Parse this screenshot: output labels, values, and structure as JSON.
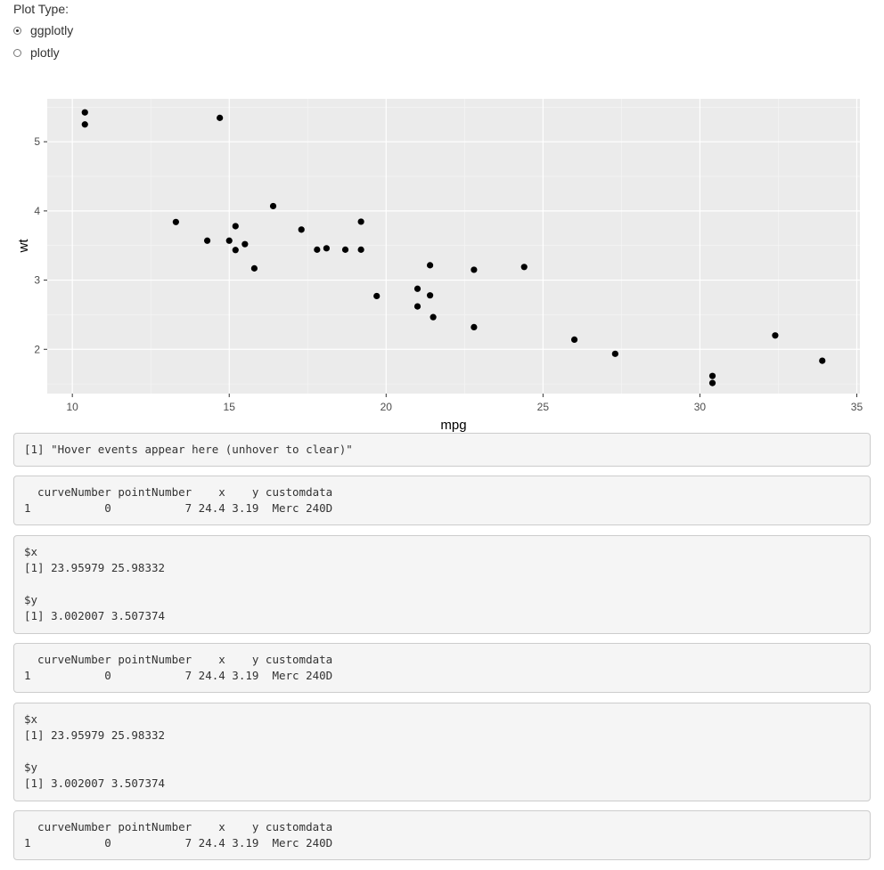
{
  "input": {
    "label": "Plot Type:",
    "options": [
      {
        "label": "ggplotly",
        "checked": true
      },
      {
        "label": "plotly",
        "checked": false
      }
    ]
  },
  "chart_data": {
    "type": "scatter",
    "title": "",
    "xlabel": "mpg",
    "ylabel": "wt",
    "xlim": [
      9.2,
      35.1
    ],
    "ylim": [
      1.36,
      5.62
    ],
    "xticks": [
      10,
      15,
      20,
      25,
      30,
      35
    ],
    "yticks": [
      2,
      3,
      4,
      5
    ],
    "xtick_labels": [
      "10",
      "15",
      "20",
      "25",
      "30",
      "35"
    ],
    "ytick_labels": [
      "2",
      "3",
      "4",
      "5"
    ],
    "grid": true,
    "background": "#ebebeb",
    "point_color": "#000000",
    "points": [
      {
        "x": 21.0,
        "y": 2.62
      },
      {
        "x": 21.0,
        "y": 2.875
      },
      {
        "x": 22.8,
        "y": 2.32
      },
      {
        "x": 21.4,
        "y": 3.215
      },
      {
        "x": 18.7,
        "y": 3.44
      },
      {
        "x": 18.1,
        "y": 3.46
      },
      {
        "x": 14.3,
        "y": 3.57
      },
      {
        "x": 24.4,
        "y": 3.19
      },
      {
        "x": 22.8,
        "y": 3.15
      },
      {
        "x": 19.2,
        "y": 3.44
      },
      {
        "x": 17.8,
        "y": 3.44
      },
      {
        "x": 16.4,
        "y": 4.07
      },
      {
        "x": 17.3,
        "y": 3.73
      },
      {
        "x": 15.2,
        "y": 3.78
      },
      {
        "x": 10.4,
        "y": 5.25
      },
      {
        "x": 10.4,
        "y": 5.424
      },
      {
        "x": 14.7,
        "y": 5.345
      },
      {
        "x": 32.4,
        "y": 2.2
      },
      {
        "x": 30.4,
        "y": 1.615
      },
      {
        "x": 33.9,
        "y": 1.835
      },
      {
        "x": 21.5,
        "y": 2.465
      },
      {
        "x": 15.5,
        "y": 3.52
      },
      {
        "x": 15.2,
        "y": 3.435
      },
      {
        "x": 13.3,
        "y": 3.84
      },
      {
        "x": 19.2,
        "y": 3.845
      },
      {
        "x": 27.3,
        "y": 1.935
      },
      {
        "x": 26.0,
        "y": 2.14
      },
      {
        "x": 30.4,
        "y": 1.513
      },
      {
        "x": 15.8,
        "y": 3.17
      },
      {
        "x": 19.7,
        "y": 2.77
      },
      {
        "x": 15.0,
        "y": 3.57
      },
      {
        "x": 21.4,
        "y": 2.78
      }
    ]
  },
  "outputs": [
    "[1] \"Hover events appear here (unhover to clear)\"",
    "  curveNumber pointNumber    x    y customdata\n1           0           7 24.4 3.19  Merc 240D",
    "$x\n[1] 23.95979 25.98332\n\n$y\n[1] 3.002007 3.507374",
    "  curveNumber pointNumber    x    y customdata\n1           0           7 24.4 3.19  Merc 240D",
    "$x\n[1] 23.95979 25.98332\n\n$y\n[1] 3.002007 3.507374",
    "  curveNumber pointNumber    x    y customdata\n1           0           7 24.4 3.19  Merc 240D"
  ]
}
